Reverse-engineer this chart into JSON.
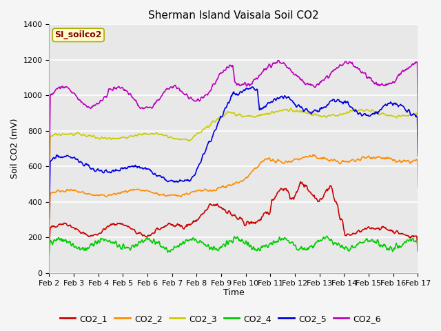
{
  "title": "Sherman Island Vaisala Soil CO2",
  "ylabel": "Soil CO2 (mV)",
  "xlabel": "Time",
  "legend_label": "SI_soilco2",
  "ylim": [
    0,
    1400
  ],
  "yticks": [
    0,
    200,
    400,
    600,
    800,
    1000,
    1200,
    1400
  ],
  "xtick_labels": [
    "Feb 2",
    "Feb 3",
    "Feb 4",
    "Feb 5",
    "Feb 6",
    "Feb 7",
    "Feb 8",
    "Feb 9",
    "Feb 10",
    "Feb 11",
    "Feb 12",
    "Feb 13",
    "Feb 14",
    "Feb 15",
    "Feb 16",
    "Feb 17"
  ],
  "colors": {
    "CO2_1": "#cc0000",
    "CO2_2": "#ff8c00",
    "CO2_3": "#cccc00",
    "CO2_4": "#00cc00",
    "CO2_5": "#0000dd",
    "CO2_6": "#bb00bb"
  },
  "fig_facecolor": "#f5f5f5",
  "plot_facecolor": "#e8e8e8",
  "title_fontsize": 11,
  "axis_label_fontsize": 9,
  "tick_label_fontsize": 8,
  "legend_fontsize": 9,
  "linewidth": 1.2
}
